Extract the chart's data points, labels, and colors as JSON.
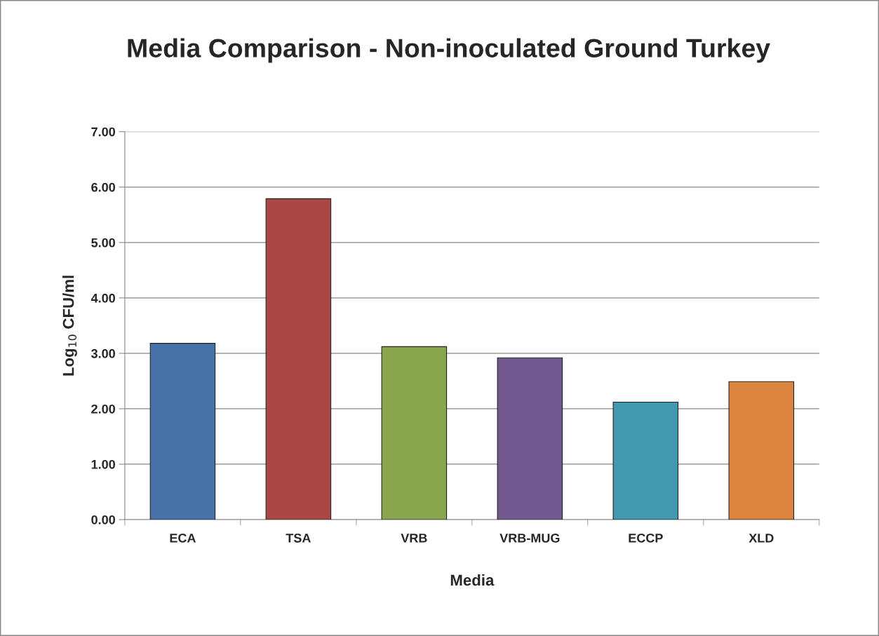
{
  "chart_data": {
    "type": "bar",
    "title": "Media Comparison - Non-inoculated Ground Turkey",
    "xlabel": "Media",
    "ylabel": "Log$_{10}$ CFU/ml",
    "categories": [
      "ECA",
      "TSA",
      "VRB",
      "VRB-MUG",
      "ECCP",
      "XLD"
    ],
    "values": [
      3.18,
      5.79,
      3.12,
      2.92,
      2.12,
      2.49
    ],
    "colors": [
      "#4672a8",
      "#aa4643",
      "#89a54e",
      "#71588f",
      "#4198af",
      "#db843d"
    ],
    "ylim": [
      0,
      7
    ],
    "yticks": [
      {
        "value": 0,
        "label": "0.00"
      },
      {
        "value": 1,
        "label": "1.00"
      },
      {
        "value": 2,
        "label": "2.00"
      },
      {
        "value": 3,
        "label": "3.00"
      },
      {
        "value": 4,
        "label": "4.00"
      },
      {
        "value": 5,
        "label": "5.00"
      },
      {
        "value": 6,
        "label": "6.00"
      },
      {
        "value": 7,
        "label": "7.00"
      }
    ],
    "grid": "y",
    "legend": false
  }
}
